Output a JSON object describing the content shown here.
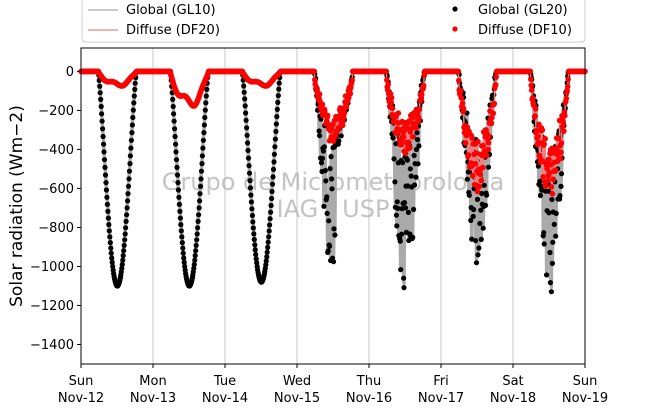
{
  "chart_data": {
    "type": "scatter",
    "ylabel": "Solar radiation ($Wm{-2}$)",
    "ylabel_display": "Solar radiation (Wm−2)",
    "ylim": [
      -1500,
      120
    ],
    "yticks": [
      0,
      -200,
      -400,
      -600,
      -800,
      -1000,
      -1200,
      -1400
    ],
    "xlim_days": [
      0,
      7
    ],
    "xticks": [
      {
        "day": "Sun",
        "date": "Nov-12"
      },
      {
        "day": "Mon",
        "date": "Nov-13"
      },
      {
        "day": "Tue",
        "date": "Nov-14"
      },
      {
        "day": "Wed",
        "date": "Nov-15"
      },
      {
        "day": "Thu",
        "date": "Nov-16"
      },
      {
        "day": "Fri",
        "date": "Nov-17"
      },
      {
        "day": "Sat",
        "date": "Nov-18"
      },
      {
        "day": "Sun",
        "date": "Nov-19"
      }
    ],
    "grid": "vertical",
    "legend_placement": "top",
    "legend": [
      {
        "label": "Global (GL10)",
        "style": "line",
        "color": "#aaaaaa"
      },
      {
        "label": "Diffuse (DF20)",
        "style": "line",
        "color": "#f08080"
      },
      {
        "label": "Global (GL20)",
        "style": "marker",
        "color": "#000000"
      },
      {
        "label": "Diffuse (DF10)",
        "style": "marker",
        "color": "#ff0000"
      }
    ],
    "watermark": [
      "Grupo de Micrometeorologia",
      "IAG - USP"
    ],
    "daily": [
      {
        "date": "Nov-12",
        "global_min": -1100,
        "diffuse_min": -80,
        "cloudy": false
      },
      {
        "date": "Nov-13",
        "global_min": -1100,
        "diffuse_min": -190,
        "cloudy": false
      },
      {
        "date": "Nov-14",
        "global_min": -1080,
        "diffuse_min": -80,
        "cloudy": false
      },
      {
        "date": "Nov-15",
        "global_min": -1100,
        "diffuse_min": -350,
        "cloudy": true
      },
      {
        "date": "Nov-16",
        "global_min": -1130,
        "diffuse_min": -420,
        "cloudy": true
      },
      {
        "date": "Nov-17",
        "global_min": -990,
        "diffuse_min": -580,
        "cloudy": true
      },
      {
        "date": "Nov-18",
        "global_min": -1200,
        "diffuse_min": -620,
        "cloudy": true
      }
    ]
  }
}
